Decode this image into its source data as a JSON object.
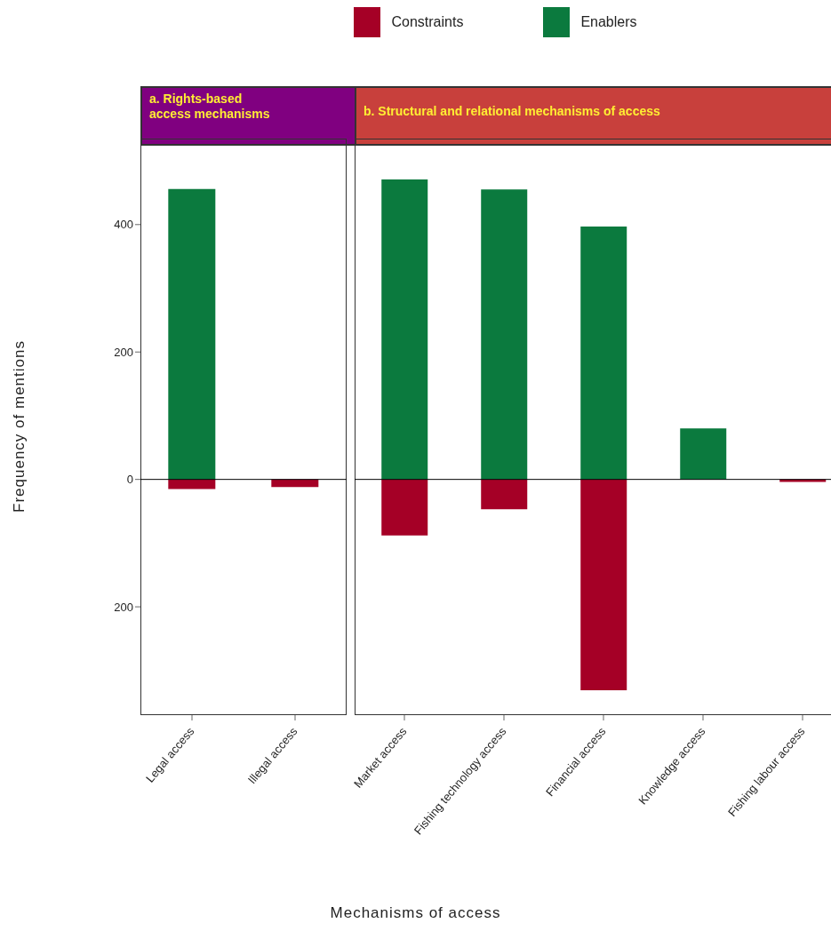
{
  "chart_data": [
    {
      "type": "bar",
      "title": "a. Rights-based\naccess mechanisms",
      "ylabel": "Frequency of mentions",
      "categories": [
        "Legal access",
        "Illegal access"
      ],
      "stacked": true,
      "legend": "top",
      "series": [
        {
          "name": "Constraints",
          "color": "#a50026",
          "values": [
            -15,
            -12
          ]
        },
        {
          "name": "Enablers",
          "color": "#0b7a3e",
          "values": [
            456,
            null
          ]
        }
      ],
      "ylim": [
        -370,
        535
      ],
      "yticks": [
        {
          "value": -200,
          "label": "200"
        },
        0,
        200,
        400
      ],
      "ref_lines": [
        {
          "axis": "y",
          "value": 0,
          "color": "#000000"
        }
      ]
    },
    {
      "type": "bar",
      "title": "b. Structural and relational mechanisms of access",
      "xlabel": "Mechanisms of access",
      "categories": [
        "Market access",
        "Fishing technology access",
        "Financial access",
        "Knowledge access",
        "Fishing labour access"
      ],
      "stacked": true,
      "tick_labels": "x",
      "series": [
        {
          "color": "#a50026",
          "values": [
            -88,
            -47,
            -331,
            null,
            -4
          ]
        },
        {
          "color": "#0b7a3e",
          "values": [
            471,
            455,
            397,
            80,
            null
          ]
        }
      ],
      "ylim": [
        -370,
        535
      ],
      "ref_lines": [
        {
          "axis": "y",
          "value": 0,
          "color": "#000000"
        }
      ]
    }
  ]
}
